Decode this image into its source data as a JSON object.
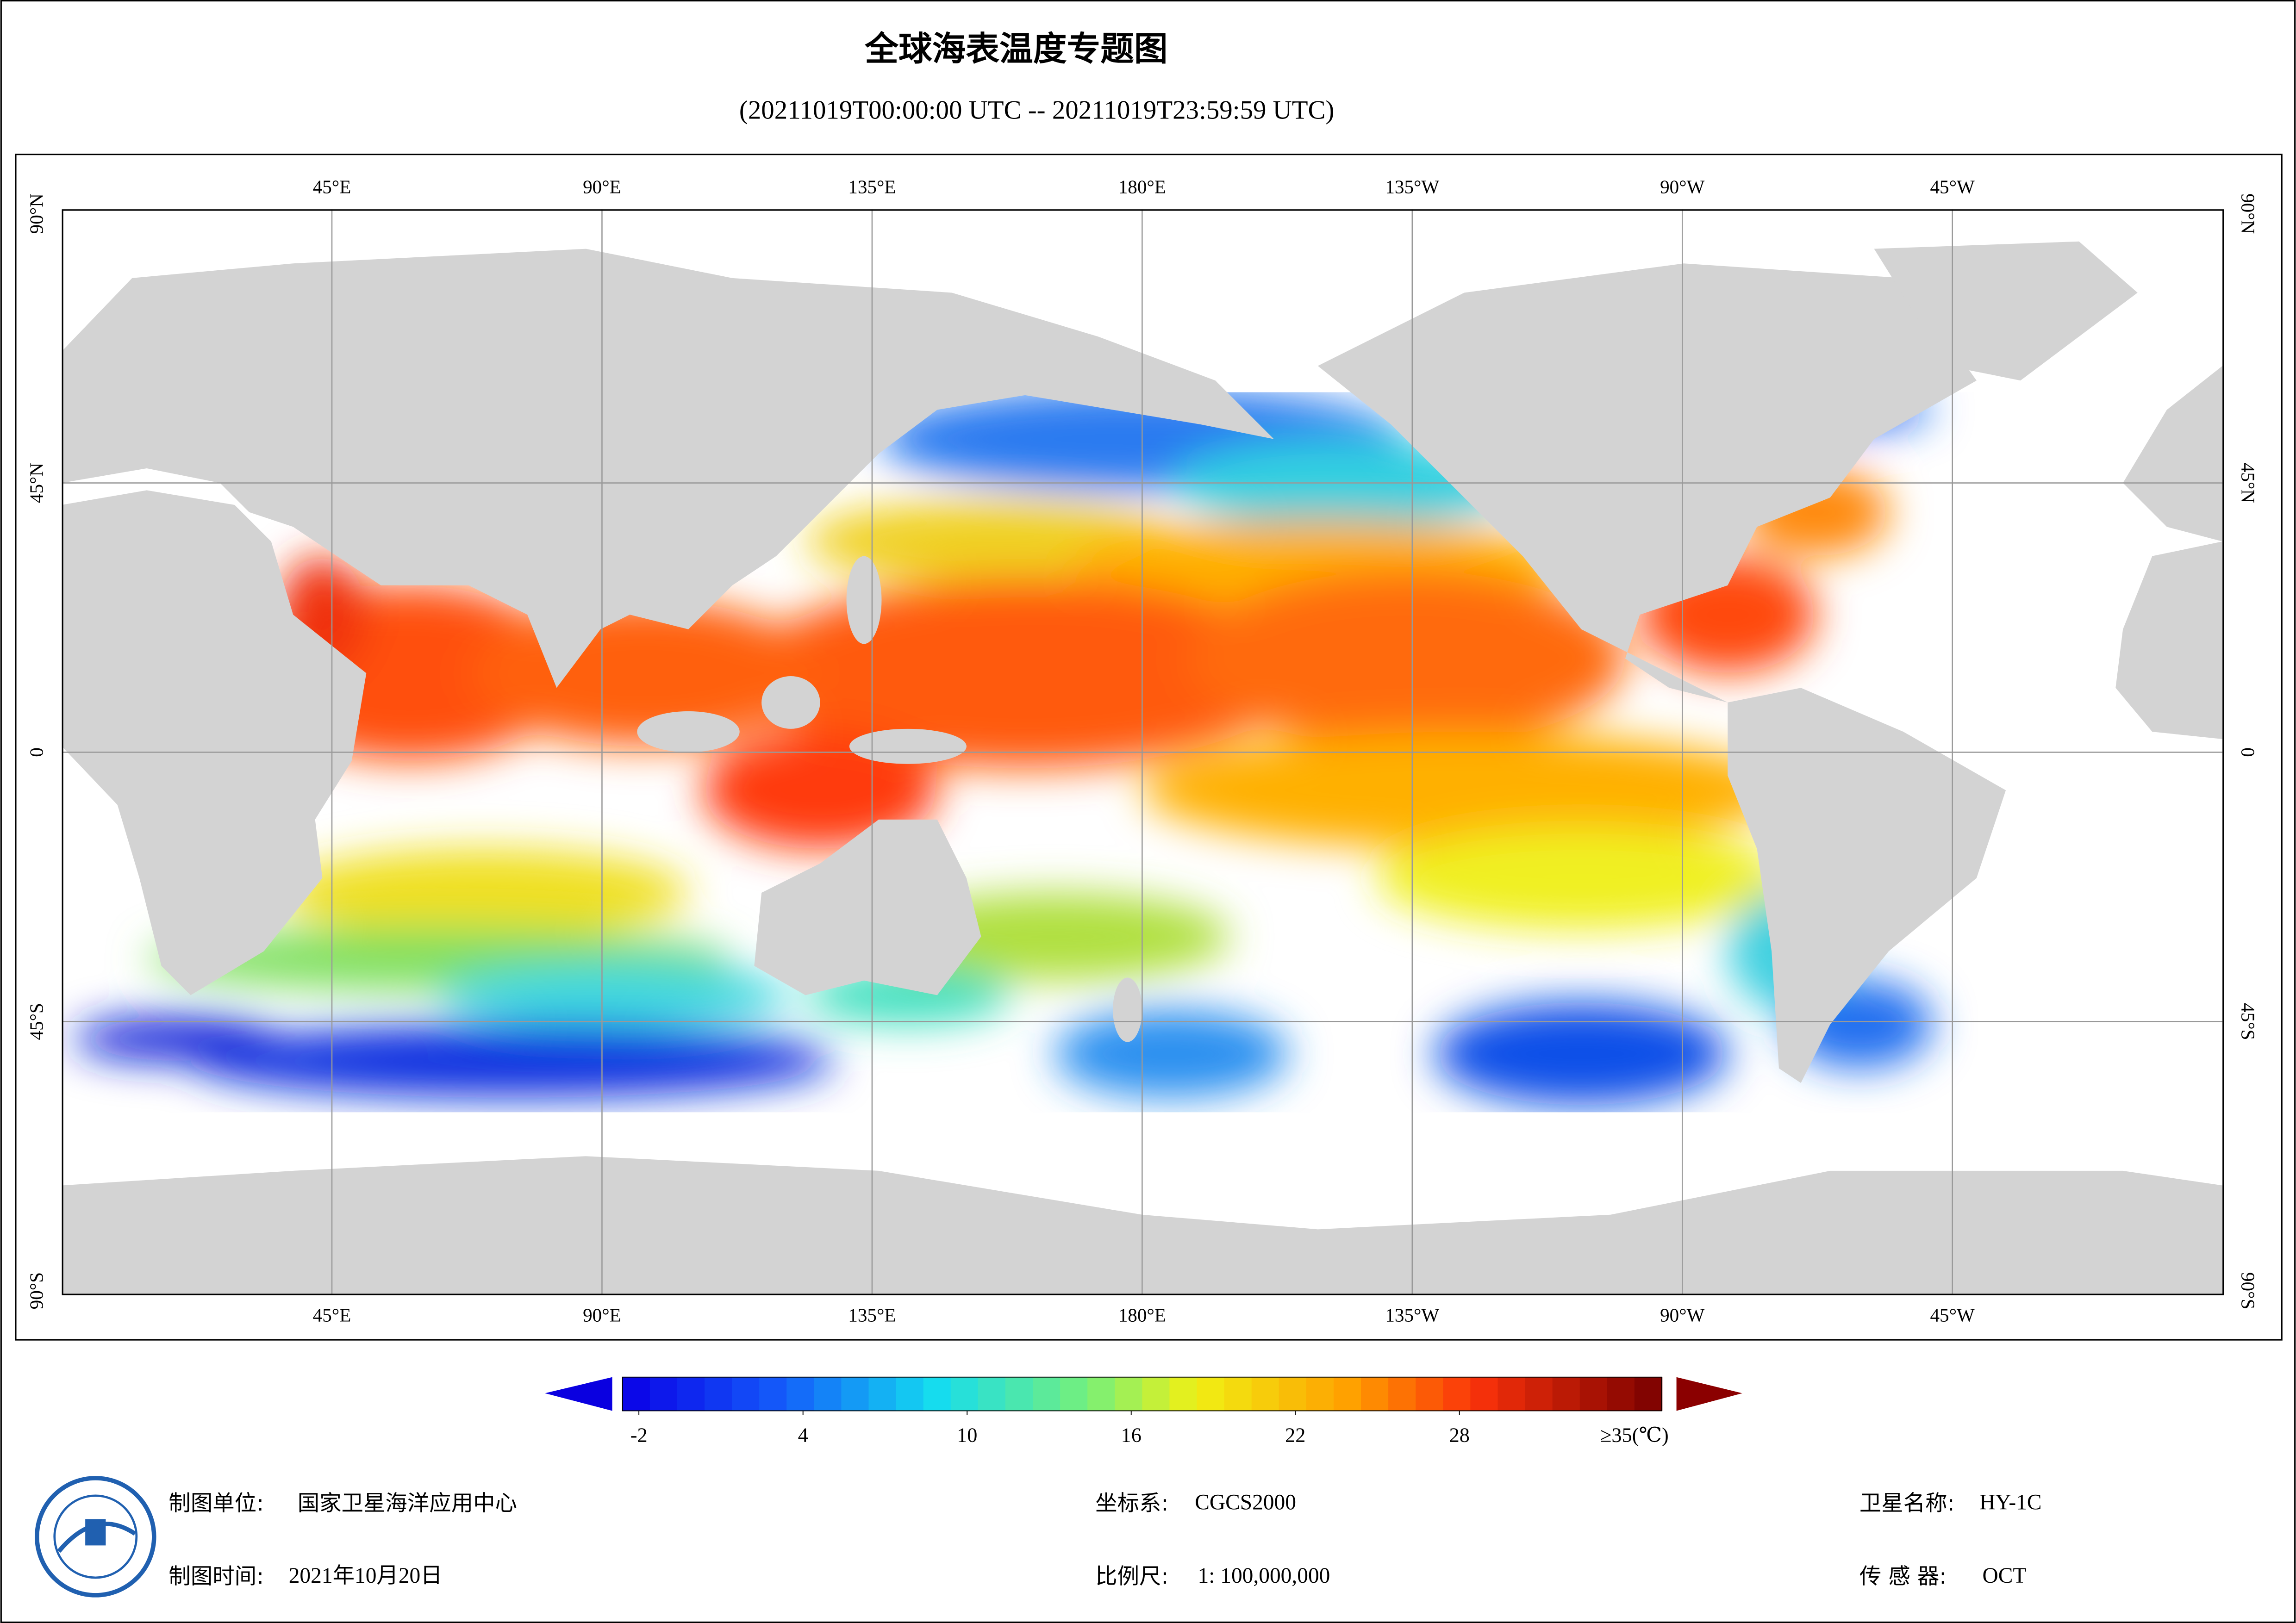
{
  "title": "全球海表温度专题图",
  "subtitle": "(20211019T00:00:00 UTC -- 20211019T23:59:59 UTC)",
  "map": {
    "lon_labels": [
      "45°E",
      "90°E",
      "135°E",
      "180°E",
      "135°W",
      "90°W",
      "45°W"
    ],
    "lat_labels": [
      "90°N",
      "45°N",
      "0",
      "45°S",
      "90°S"
    ]
  },
  "colorbar": {
    "lim": [
      -2.6,
      35.4
    ],
    "ticks": [
      -2,
      4,
      10,
      16,
      22,
      28
    ],
    "end_label": "≥35(℃)"
  },
  "footer": {
    "unit_label": "制图单位:",
    "unit": "国家卫星海洋应用中心",
    "time_label": "制图时间:",
    "time": "2021年10月20日",
    "crs_label": "坐标系:",
    "crs": "CGCS2000",
    "scale_label": "比例尺:",
    "scale": "1: 100,000,000",
    "sat_label": "卫星名称:",
    "sat": "HY-1C",
    "sensor_label": "传 感 器:",
    "sensor": "OCT"
  }
}
